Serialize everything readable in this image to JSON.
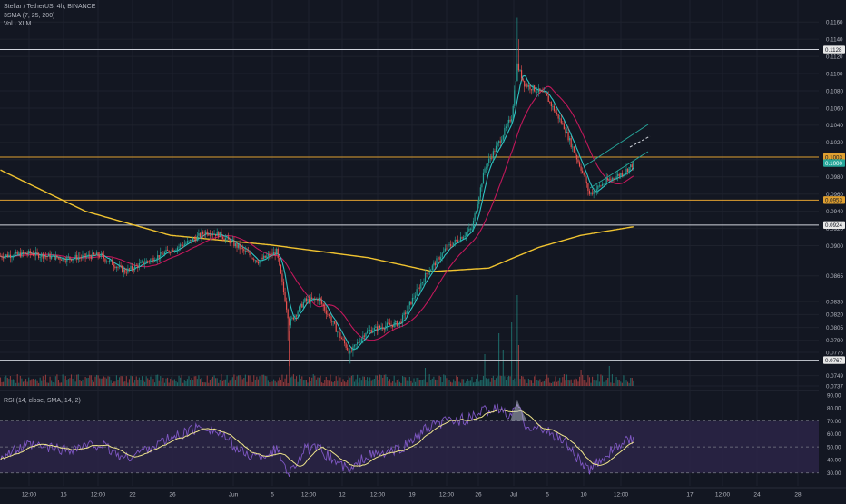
{
  "header": {
    "symbol_line": "Stellar / TetherUS, 4h, BINANCE",
    "sma_line": "3SMA (7, 25, 200)",
    "vol_line": "Vol · XLM"
  },
  "rsi_label": "RSI (14, close, SMA, 14, 2)",
  "colors": {
    "background": "#131722",
    "up": "#26a69a",
    "down": "#ef5350",
    "sma7": "#2ec4c4",
    "sma25": "#c2185b",
    "sma200": "#f0c330",
    "level_orange": "#e0a030",
    "level_white": "#d1d4dc",
    "rsi_line": "#7e57c2",
    "rsi_sma": "#f0e68c",
    "rsi_band": "#2b2446"
  },
  "price_axis": {
    "ticks": [
      "0.1160",
      "0.1140",
      "0.1120",
      "0.1100",
      "0.1080",
      "0.1060",
      "0.1040",
      "0.1020",
      "0.1000",
      "0.0980",
      "0.0960",
      "0.0940",
      "0.0920",
      "0.0900",
      "0.0865",
      "0.0835",
      "0.0820",
      "0.0805",
      "0.0790",
      "0.0776",
      "0.0749",
      "0.0737"
    ],
    "labels": [
      {
        "text": "0.1128",
        "style": "white"
      },
      {
        "text": "0.1003",
        "style": "orange"
      },
      {
        "text": "0.1000",
        "style": "teal"
      },
      {
        "text": "0.0953",
        "style": "orange"
      },
      {
        "text": "0.0924",
        "style": "white"
      },
      {
        "text": "0.0767",
        "style": "white"
      }
    ]
  },
  "rsi_axis": {
    "ticks": [
      "90.00",
      "80.00",
      "70.00",
      "60.00",
      "50.00",
      "40.00",
      "30.00"
    ]
  },
  "time_axis": {
    "ticks": [
      "12:00",
      "15",
      "12:00",
      "22",
      "26",
      "Jun",
      "5",
      "12:00",
      "12",
      "12:00",
      "19",
      "12:00",
      "26",
      "Jul",
      "5",
      "10",
      "12:00",
      "17",
      "12:00",
      "24",
      "28"
    ]
  },
  "chart_data": {
    "type": "candlestick",
    "title": "Stellar / TetherUS, 4h, BINANCE",
    "overlays": [
      "SMA 7",
      "SMA 25",
      "SMA 200"
    ],
    "horizontal_levels": [
      0.1128,
      0.1003,
      0.0953,
      0.0924,
      0.0767
    ],
    "ylim": [
      0.0737,
      0.1175
    ],
    "keypoints": [
      {
        "t": 0,
        "price": 0.0888
      },
      {
        "t": 20,
        "price": 0.0891
      },
      {
        "t": 45,
        "price": 0.0885
      },
      {
        "t": 70,
        "price": 0.0889
      },
      {
        "t": 88,
        "price": 0.087
      },
      {
        "t": 110,
        "price": 0.0887
      },
      {
        "t": 135,
        "price": 0.0906
      },
      {
        "t": 145,
        "price": 0.0916
      },
      {
        "t": 155,
        "price": 0.0913
      },
      {
        "t": 170,
        "price": 0.0896
      },
      {
        "t": 182,
        "price": 0.0882
      },
      {
        "t": 195,
        "price": 0.0893
      },
      {
        "t": 204,
        "price": 0.081
      },
      {
        "t": 215,
        "price": 0.0836
      },
      {
        "t": 225,
        "price": 0.0838
      },
      {
        "t": 238,
        "price": 0.08
      },
      {
        "t": 247,
        "price": 0.0775
      },
      {
        "t": 258,
        "price": 0.08
      },
      {
        "t": 272,
        "price": 0.0807
      },
      {
        "t": 282,
        "price": 0.081
      },
      {
        "t": 300,
        "price": 0.0865
      },
      {
        "t": 315,
        "price": 0.0897
      },
      {
        "t": 333,
        "price": 0.092
      },
      {
        "t": 342,
        "price": 0.099
      },
      {
        "t": 352,
        "price": 0.102
      },
      {
        "t": 361,
        "price": 0.105
      },
      {
        "t": 365,
        "price": 0.111
      },
      {
        "t": 370,
        "price": 0.1088
      },
      {
        "t": 385,
        "price": 0.1075
      },
      {
        "t": 398,
        "price": 0.1038
      },
      {
        "t": 410,
        "price": 0.099
      },
      {
        "t": 416,
        "price": 0.096
      },
      {
        "t": 428,
        "price": 0.0975
      },
      {
        "t": 440,
        "price": 0.0985
      },
      {
        "t": 447,
        "price": 0.0995
      }
    ],
    "sma200_keypoints": [
      {
        "t": 0,
        "price": 0.0988
      },
      {
        "t": 60,
        "price": 0.094
      },
      {
        "t": 120,
        "price": 0.0912
      },
      {
        "t": 190,
        "price": 0.0901
      },
      {
        "t": 260,
        "price": 0.0886
      },
      {
        "t": 305,
        "price": 0.087
      },
      {
        "t": 345,
        "price": 0.0874
      },
      {
        "t": 380,
        "price": 0.0898
      },
      {
        "t": 410,
        "price": 0.0912
      },
      {
        "t": 447,
        "price": 0.0922
      }
    ],
    "rsi": {
      "ylim": [
        20,
        90
      ],
      "bands": [
        30,
        50,
        70
      ],
      "keypoints": [
        {
          "t": 0,
          "v": 43
        },
        {
          "t": 20,
          "v": 51
        },
        {
          "t": 45,
          "v": 48
        },
        {
          "t": 70,
          "v": 52
        },
        {
          "t": 88,
          "v": 41
        },
        {
          "t": 110,
          "v": 52
        },
        {
          "t": 135,
          "v": 63
        },
        {
          "t": 145,
          "v": 66
        },
        {
          "t": 155,
          "v": 60
        },
        {
          "t": 170,
          "v": 46
        },
        {
          "t": 182,
          "v": 42
        },
        {
          "t": 195,
          "v": 48
        },
        {
          "t": 204,
          "v": 30
        },
        {
          "t": 215,
          "v": 48
        },
        {
          "t": 225,
          "v": 48
        },
        {
          "t": 238,
          "v": 38
        },
        {
          "t": 247,
          "v": 31
        },
        {
          "t": 258,
          "v": 43
        },
        {
          "t": 272,
          "v": 45
        },
        {
          "t": 282,
          "v": 48
        },
        {
          "t": 300,
          "v": 63
        },
        {
          "t": 315,
          "v": 70
        },
        {
          "t": 333,
          "v": 72
        },
        {
          "t": 342,
          "v": 78
        },
        {
          "t": 352,
          "v": 79
        },
        {
          "t": 361,
          "v": 73
        },
        {
          "t": 365,
          "v": 84
        },
        {
          "t": 370,
          "v": 68
        },
        {
          "t": 385,
          "v": 62
        },
        {
          "t": 398,
          "v": 55
        },
        {
          "t": 410,
          "v": 38
        },
        {
          "t": 416,
          "v": 31
        },
        {
          "t": 428,
          "v": 45
        },
        {
          "t": 440,
          "v": 53
        },
        {
          "t": 447,
          "v": 56
        }
      ]
    }
  }
}
